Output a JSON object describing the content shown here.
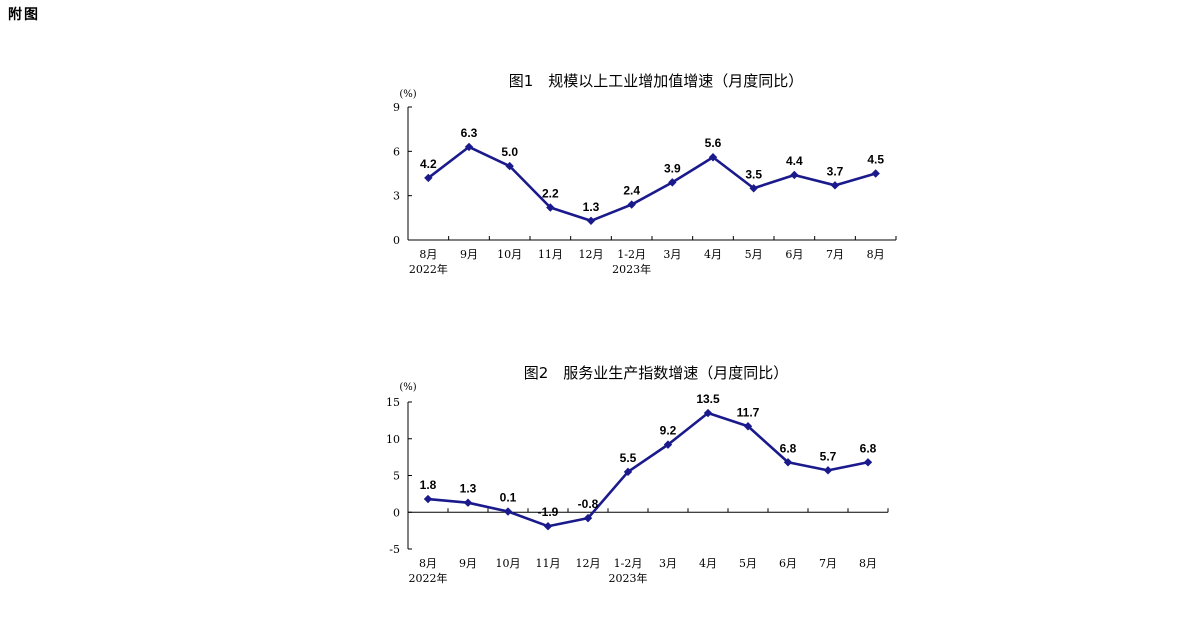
{
  "page": {
    "label": "附图"
  },
  "chart_data": [
    {
      "type": "line",
      "title": "图1　规模以上工业增加值增速（月度同比）",
      "ylabel": "(%)",
      "categories": [
        "8月",
        "9月",
        "10月",
        "11月",
        "12月",
        "1-2月",
        "3月",
        "4月",
        "5月",
        "6月",
        "7月",
        "8月"
      ],
      "year_labels": [
        "2022年",
        "",
        "",
        "",
        "",
        "2023年",
        "",
        "",
        "",
        "",
        "",
        ""
      ],
      "values": [
        4.2,
        6.3,
        5.0,
        2.2,
        1.3,
        2.4,
        3.9,
        5.6,
        3.5,
        4.4,
        3.7,
        4.5
      ],
      "value_labels": [
        "4.2",
        "6.3",
        "5.0",
        "2.2",
        "1.3",
        "2.4",
        "3.9",
        "5.6",
        "3.5",
        "4.4",
        "3.7",
        "4.5"
      ],
      "ylim": [
        0,
        9
      ],
      "yticks": [
        "0",
        "3",
        "6",
        "9"
      ],
      "grid": false,
      "colors": {
        "line": "#1a1a8c"
      }
    },
    {
      "type": "line",
      "title": "图2　服务业生产指数增速（月度同比）",
      "ylabel": "(%)",
      "categories": [
        "8月",
        "9月",
        "10月",
        "11月",
        "12月",
        "1-2月",
        "3月",
        "4月",
        "5月",
        "6月",
        "7月",
        "8月"
      ],
      "year_labels": [
        "2022年",
        "",
        "",
        "",
        "",
        "2023年",
        "",
        "",
        "",
        "",
        "",
        ""
      ],
      "values": [
        1.8,
        1.3,
        0.1,
        -1.9,
        -0.8,
        5.5,
        9.2,
        13.5,
        11.7,
        6.8,
        5.7,
        6.8
      ],
      "value_labels": [
        "1.8",
        "1.3",
        "0.1",
        "-1.9",
        "-0.8",
        "5.5",
        "9.2",
        "13.5",
        "11.7",
        "6.8",
        "5.7",
        "6.8"
      ],
      "ylim": [
        -5,
        15
      ],
      "yticks": [
        "-5",
        "0",
        "5",
        "10",
        "15"
      ],
      "grid": false,
      "colors": {
        "line": "#1a1a8c"
      }
    }
  ]
}
